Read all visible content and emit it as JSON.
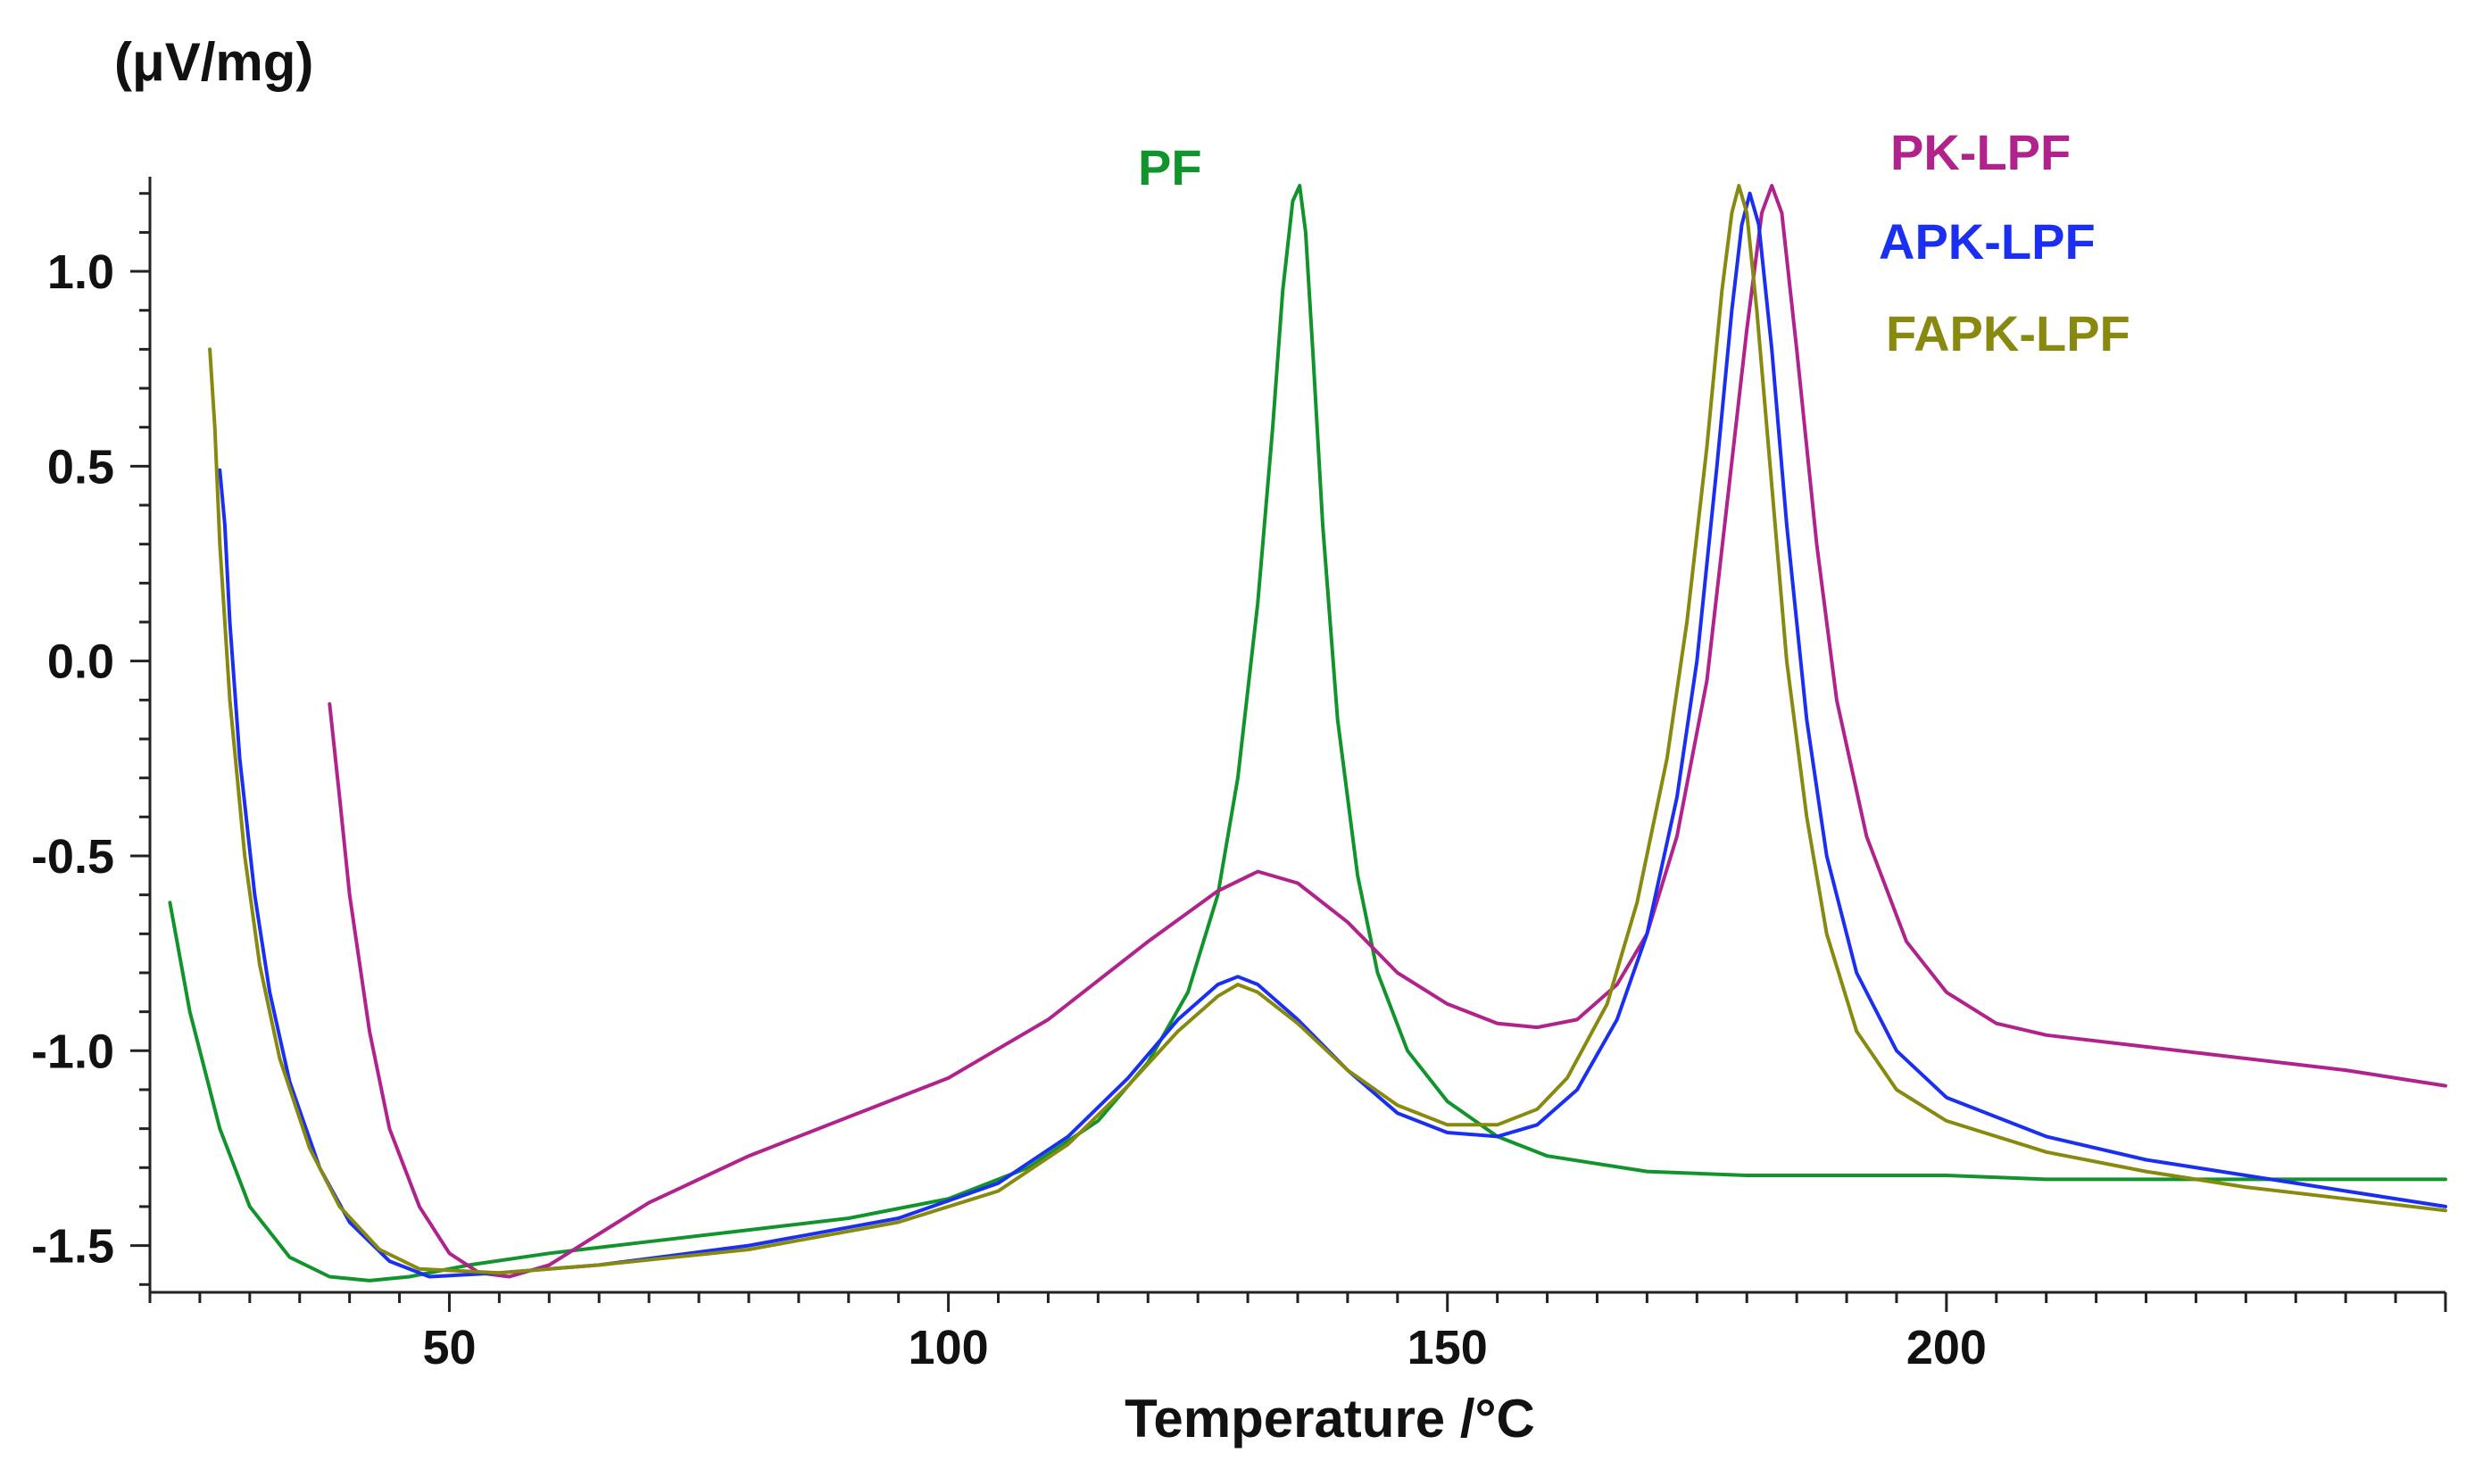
{
  "chart_data": {
    "type": "line",
    "title": "",
    "xlabel": "Temperature /°C",
    "ylabel": "(μV/mg)",
    "xlim": [
      20,
      250
    ],
    "ylim": [
      -1.62,
      1.22
    ],
    "x_ticks": [
      50,
      100,
      150,
      200
    ],
    "x_tick_labels": [
      "50",
      "100",
      "150",
      "200"
    ],
    "y_ticks": [
      1.0,
      0.5,
      0.0,
      -0.5,
      -1.0,
      -1.5
    ],
    "y_tick_labels": [
      "1.0",
      "0.5",
      "0.0",
      "-0.5",
      "-1.0",
      "-1.5"
    ],
    "grid": false,
    "series": [
      {
        "name": "PF",
        "color": "#11942b",
        "x": [
          22,
          24,
          27,
          30,
          34,
          38,
          42,
          46,
          52,
          60,
          70,
          80,
          90,
          100,
          108,
          115,
          120,
          124,
          127,
          129,
          131,
          132.5,
          133.5,
          134.5,
          135.2,
          135.8,
          136.5,
          137.5,
          139,
          141,
          143,
          146,
          150,
          155,
          160,
          170,
          180,
          190,
          200,
          210,
          220,
          230,
          240,
          250
        ],
        "y": [
          -0.62,
          -0.9,
          -1.2,
          -1.4,
          -1.53,
          -1.58,
          -1.59,
          -1.58,
          -1.55,
          -1.52,
          -1.49,
          -1.46,
          -1.43,
          -1.38,
          -1.3,
          -1.18,
          -1.03,
          -0.85,
          -0.6,
          -0.3,
          0.15,
          0.6,
          0.95,
          1.18,
          1.22,
          1.1,
          0.8,
          0.35,
          -0.15,
          -0.55,
          -0.8,
          -1.0,
          -1.13,
          -1.22,
          -1.27,
          -1.31,
          -1.32,
          -1.32,
          -1.32,
          -1.33,
          -1.33,
          -1.33,
          -1.33,
          -1.33
        ]
      },
      {
        "name": "PK-LPF",
        "color": "#b0228c",
        "x": [
          38,
          39,
          40,
          42,
          44,
          47,
          50,
          53,
          56,
          60,
          65,
          70,
          80,
          90,
          100,
          110,
          120,
          127,
          131,
          135,
          140,
          145,
          150,
          155,
          159,
          163,
          167,
          170,
          173,
          176,
          178,
          180,
          181.5,
          182.5,
          183.5,
          185,
          187,
          189,
          192,
          196,
          200,
          205,
          210,
          220,
          230,
          240,
          250
        ],
        "y": [
          -0.11,
          -0.35,
          -0.6,
          -0.95,
          -1.2,
          -1.4,
          -1.52,
          -1.57,
          -1.58,
          -1.55,
          -1.47,
          -1.39,
          -1.27,
          -1.17,
          -1.07,
          -0.92,
          -0.72,
          -0.59,
          -0.54,
          -0.57,
          -0.67,
          -0.8,
          -0.88,
          -0.93,
          -0.94,
          -0.92,
          -0.83,
          -0.7,
          -0.45,
          -0.05,
          0.4,
          0.85,
          1.15,
          1.22,
          1.15,
          0.8,
          0.3,
          -0.1,
          -0.45,
          -0.72,
          -0.85,
          -0.93,
          -0.96,
          -0.99,
          -1.02,
          -1.05,
          -1.09
        ]
      },
      {
        "name": "APK-LPF",
        "color": "#1b2ff0",
        "x": [
          27,
          27.5,
          28,
          29,
          30.5,
          32,
          34,
          37,
          40,
          44,
          48,
          55,
          65,
          80,
          95,
          105,
          112,
          118,
          123,
          127,
          129,
          131,
          135,
          140,
          145,
          150,
          155,
          159,
          163,
          167,
          170,
          173,
          175,
          177,
          178.5,
          179.5,
          180.3,
          181.2,
          182.5,
          184,
          186,
          188,
          191,
          195,
          200,
          210,
          220,
          230,
          240,
          250
        ],
        "y": [
          0.49,
          0.35,
          0.1,
          -0.25,
          -0.6,
          -0.85,
          -1.08,
          -1.3,
          -1.44,
          -1.54,
          -1.58,
          -1.57,
          -1.55,
          -1.5,
          -1.43,
          -1.34,
          -1.22,
          -1.07,
          -0.92,
          -0.83,
          -0.81,
          -0.83,
          -0.92,
          -1.05,
          -1.16,
          -1.21,
          -1.22,
          -1.19,
          -1.1,
          -0.92,
          -0.7,
          -0.35,
          0.0,
          0.5,
          0.9,
          1.12,
          1.2,
          1.12,
          0.8,
          0.35,
          -0.15,
          -0.5,
          -0.8,
          -1.0,
          -1.12,
          -1.22,
          -1.28,
          -1.32,
          -1.36,
          -1.4
        ]
      },
      {
        "name": "FAPK-LPF",
        "color": "#878a0f",
        "x": [
          26,
          26.5,
          27,
          28,
          29.5,
          31,
          33,
          36,
          39,
          43,
          47,
          55,
          65,
          80,
          95,
          105,
          112,
          118,
          123,
          127,
          129,
          131,
          135,
          140,
          145,
          150,
          155,
          159,
          162,
          166,
          169,
          172,
          174,
          176,
          177.5,
          178.5,
          179.2,
          180,
          181,
          182.5,
          184,
          186,
          188,
          191,
          195,
          200,
          210,
          220,
          230,
          240,
          250
        ],
        "y": [
          0.8,
          0.6,
          0.3,
          -0.1,
          -0.5,
          -0.78,
          -1.02,
          -1.25,
          -1.4,
          -1.51,
          -1.56,
          -1.57,
          -1.55,
          -1.51,
          -1.44,
          -1.36,
          -1.24,
          -1.09,
          -0.95,
          -0.86,
          -0.83,
          -0.85,
          -0.93,
          -1.05,
          -1.14,
          -1.19,
          -1.19,
          -1.15,
          -1.07,
          -0.88,
          -0.62,
          -0.25,
          0.1,
          0.55,
          0.95,
          1.15,
          1.22,
          1.15,
          0.9,
          0.45,
          0.0,
          -0.4,
          -0.7,
          -0.95,
          -1.1,
          -1.18,
          -1.26,
          -1.31,
          -1.35,
          -1.38,
          -1.41
        ]
      }
    ],
    "legend": {
      "placement": "top-right",
      "entries": [
        "PK-LPF",
        "APK-LPF",
        "FAPK-LPF"
      ]
    },
    "annotations": [
      {
        "text": "PF",
        "color": "#11942b"
      }
    ]
  }
}
